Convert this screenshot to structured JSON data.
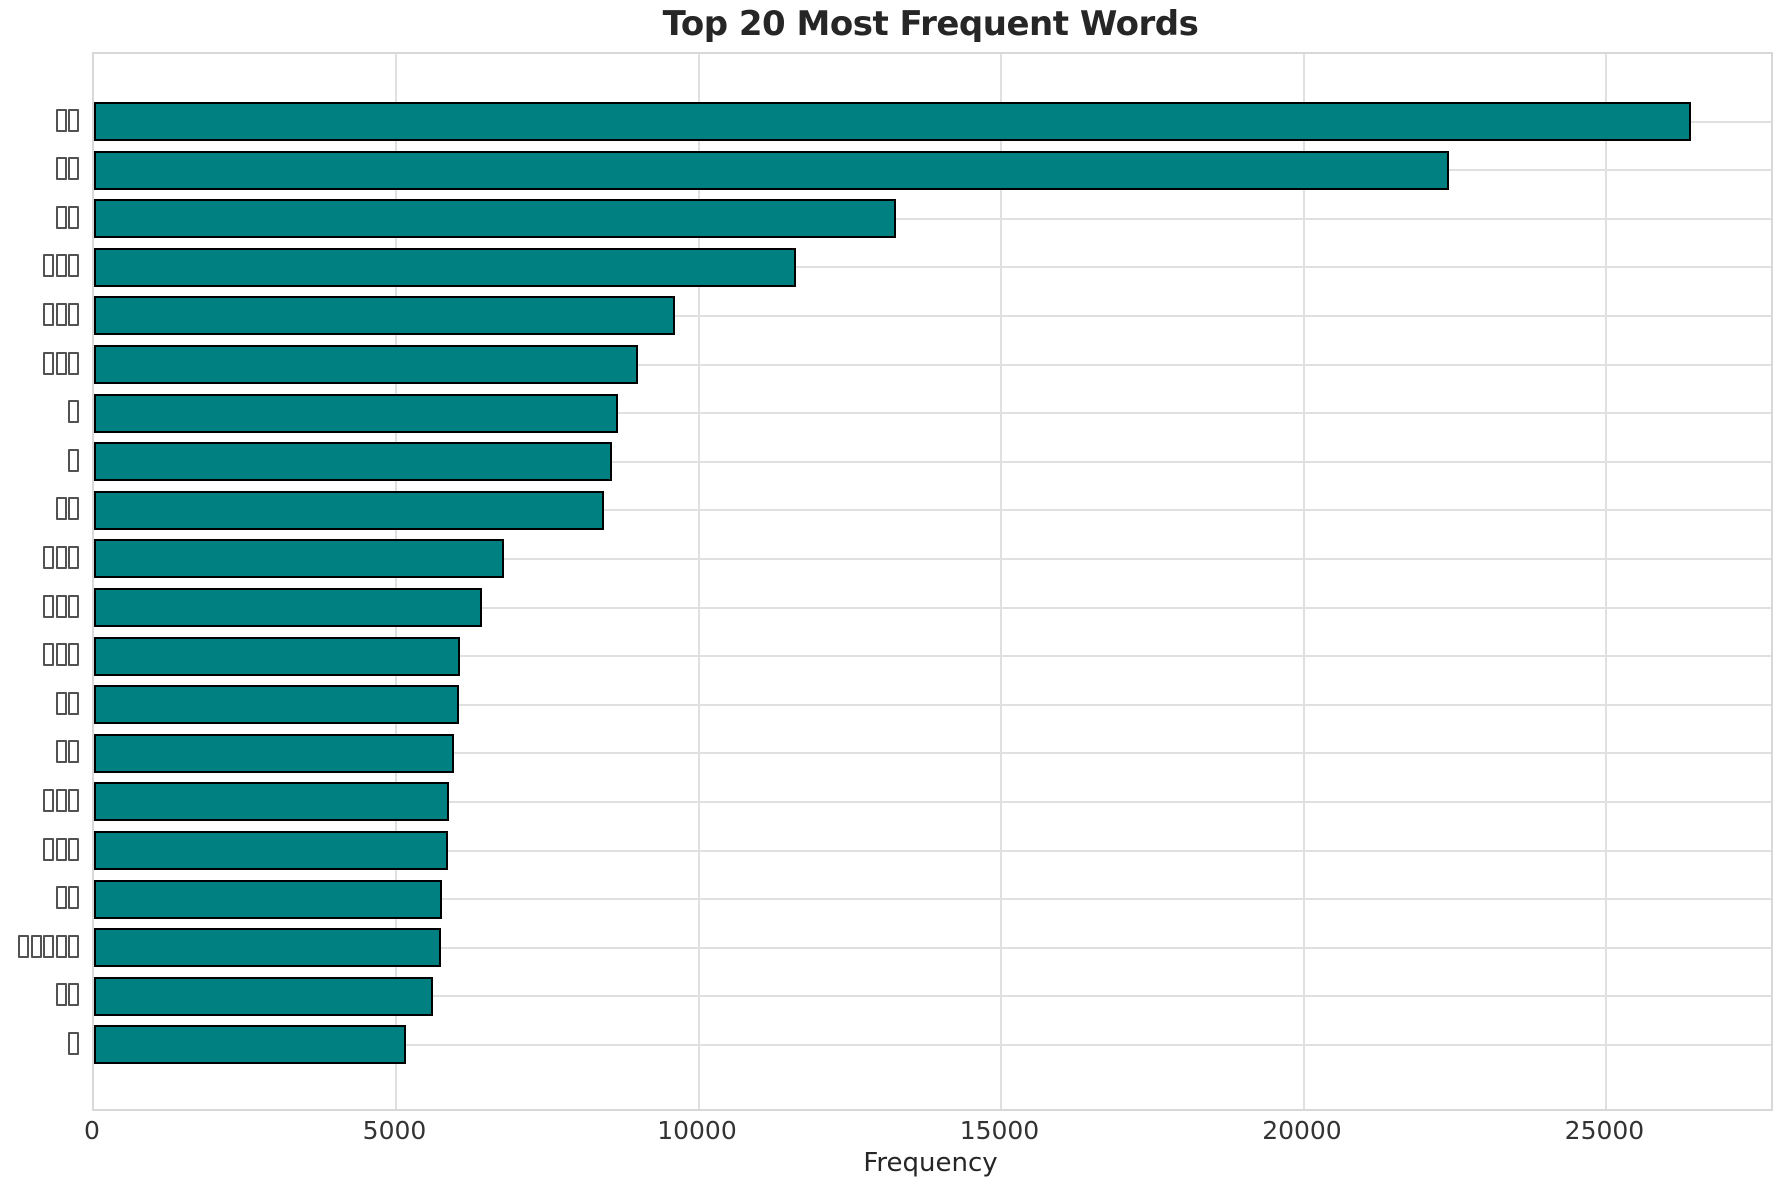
{
  "chart_data": {
    "type": "bar",
    "orientation": "horizontal",
    "title": "Top 20 Most Frequent Words",
    "xlabel": "Frequency",
    "ylabel": "",
    "categories": [
      "□□",
      "□□",
      "□□",
      "□□□",
      "□□□",
      "□□□",
      "□",
      "□",
      "□□",
      "□□□",
      "□□□",
      "□□□",
      "□□",
      "□□",
      "□□□",
      "□□□",
      "□□",
      "□□□□□",
      "□□",
      "□"
    ],
    "categories_note": "y-axis words are CJK strings rendered as missing-glyph (tofu) boxes in the screenshot",
    "values": [
      26400,
      22400,
      13250,
      11600,
      9600,
      9000,
      8660,
      8560,
      8430,
      6780,
      6410,
      6050,
      6030,
      5950,
      5870,
      5850,
      5750,
      5730,
      5600,
      5160
    ],
    "xticks": [
      0,
      5000,
      10000,
      15000,
      20000,
      25000
    ],
    "xlim": [
      0,
      27720
    ],
    "grid": "both",
    "legend": "none"
  },
  "colors": {
    "bar_fill": "#008080",
    "bar_edge": "#000000",
    "grid": "#e0e0e0",
    "spine": "#d8d8d8",
    "title_text": "#262626",
    "tick_text": "#333333"
  }
}
